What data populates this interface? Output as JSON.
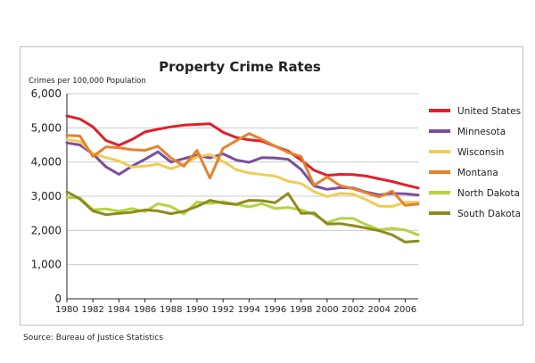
{
  "source": "Source: Bureau of Justice Statistics",
  "chart_data": {
    "type": "line",
    "title": "Property Crime Rates",
    "ylabel": "Crimes per 100,000 Population",
    "xlabel": "",
    "xlim": [
      1980,
      2007
    ],
    "ylim": [
      0,
      6000
    ],
    "yticks": [
      0,
      1000,
      2000,
      3000,
      4000,
      5000,
      6000
    ],
    "ytick_labels": [
      "0",
      "1,000",
      "2,000",
      "3,000",
      "4,000",
      "5,000",
      "6,000"
    ],
    "xticks": [
      1980,
      1982,
      1984,
      1986,
      1988,
      1990,
      1992,
      1994,
      1996,
      1998,
      2000,
      2002,
      2004,
      2006
    ],
    "grid": "horizontal",
    "legend": "right",
    "x": [
      1980,
      1981,
      1982,
      1983,
      1984,
      1985,
      1986,
      1987,
      1988,
      1989,
      1990,
      1991,
      1992,
      1993,
      1994,
      1995,
      1996,
      1997,
      1998,
      1999,
      2000,
      2001,
      2002,
      2003,
      2004,
      2005,
      2006,
      2007
    ],
    "series": [
      {
        "name": "United States",
        "color": "#e0202a",
        "values": [
          5350,
          5260,
          5030,
          4630,
          4490,
          4660,
          4880,
          4960,
          5030,
          5080,
          5100,
          5120,
          4870,
          4720,
          4650,
          4610,
          4460,
          4320,
          4060,
          3760,
          3610,
          3640,
          3630,
          3590,
          3510,
          3430,
          3330,
          3240
        ]
      },
      {
        "name": "Minnesota",
        "color": "#7a4f9e",
        "values": [
          4560,
          4500,
          4240,
          3860,
          3640,
          3880,
          4080,
          4300,
          4000,
          4100,
          4200,
          4120,
          4240,
          4060,
          3990,
          4130,
          4120,
          4080,
          3780,
          3300,
          3200,
          3250,
          3240,
          3120,
          3040,
          3080,
          3070,
          3030
        ]
      },
      {
        "name": "Wisconsin",
        "color": "#f0cc55",
        "values": [
          4660,
          4600,
          4250,
          4130,
          4030,
          3850,
          3880,
          3940,
          3800,
          3940,
          4150,
          4220,
          4020,
          3780,
          3680,
          3630,
          3590,
          3440,
          3370,
          3130,
          2990,
          3080,
          3060,
          2900,
          2710,
          2700,
          2820,
          2820
        ]
      },
      {
        "name": "Montana",
        "color": "#e7812c",
        "values": [
          4780,
          4760,
          4160,
          4440,
          4420,
          4360,
          4340,
          4460,
          4120,
          3880,
          4340,
          3530,
          4400,
          4620,
          4830,
          4660,
          4460,
          4280,
          4160,
          3320,
          3560,
          3310,
          3220,
          3100,
          2980,
          3150,
          2730,
          2770
        ]
      },
      {
        "name": "North Dakota",
        "color": "#b5d342",
        "values": [
          2960,
          2950,
          2600,
          2630,
          2560,
          2640,
          2550,
          2780,
          2700,
          2480,
          2830,
          2790,
          2840,
          2760,
          2690,
          2780,
          2640,
          2670,
          2600,
          2460,
          2230,
          2350,
          2350,
          2170,
          2020,
          2060,
          2010,
          1870
        ]
      },
      {
        "name": "South Dakota",
        "color": "#8f8a1e",
        "values": [
          3130,
          2920,
          2570,
          2460,
          2500,
          2530,
          2600,
          2570,
          2490,
          2560,
          2700,
          2880,
          2800,
          2760,
          2880,
          2870,
          2810,
          3080,
          2500,
          2510,
          2190,
          2200,
          2140,
          2070,
          1990,
          1870,
          1660,
          1690
        ]
      }
    ]
  }
}
